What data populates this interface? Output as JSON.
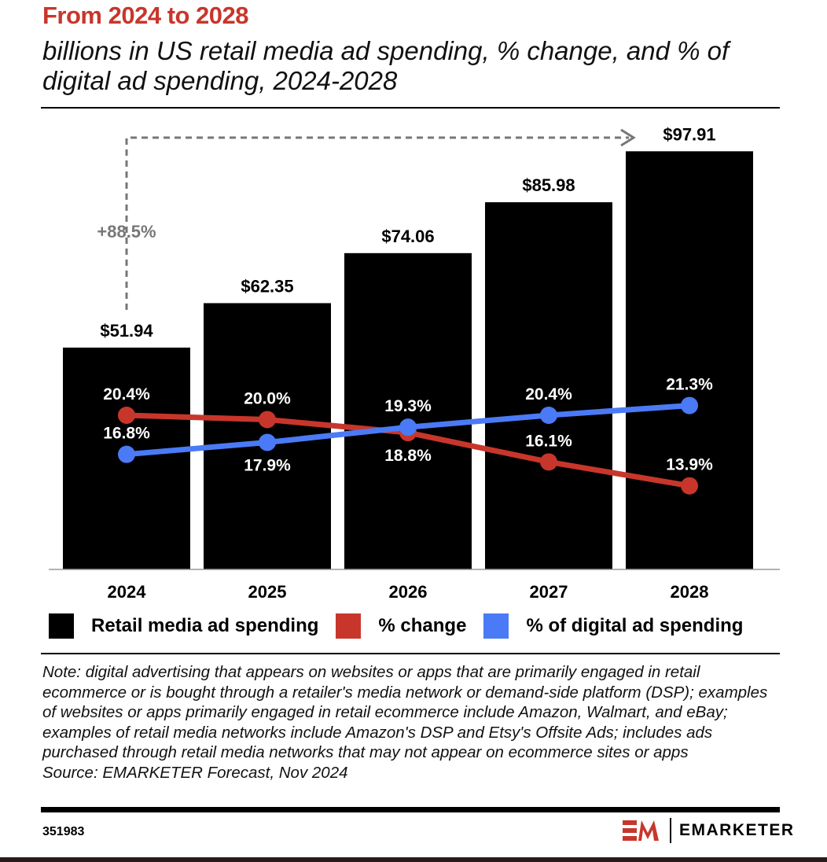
{
  "title": "From 2024 to 2028",
  "subtitle": "billions in US retail media ad spending, % change, and % of digital ad spending, 2024-2028",
  "chart_data": {
    "type": "bar",
    "categories": [
      "2024",
      "2025",
      "2026",
      "2027",
      "2028"
    ],
    "series": [
      {
        "name": "Retail media ad spending",
        "type": "bar",
        "values": [
          51.94,
          62.35,
          74.06,
          85.98,
          97.91
        ],
        "labels": [
          "$51.94",
          "$62.35",
          "$74.06",
          "$85.98",
          "$97.91"
        ],
        "color": "#000000"
      },
      {
        "name": "% change",
        "type": "line",
        "values": [
          20.4,
          20.0,
          18.8,
          16.1,
          13.9
        ],
        "labels": [
          "20.4%",
          "20.0%",
          "18.8%",
          "16.1%",
          "13.9%"
        ],
        "color": "#c8362b"
      },
      {
        "name": "% of digital ad spending",
        "type": "line",
        "values": [
          16.8,
          17.9,
          19.3,
          20.4,
          21.3
        ],
        "labels": [
          "16.8%",
          "17.9%",
          "19.3%",
          "20.4%",
          "21.3%"
        ],
        "color": "#4a7af5"
      }
    ],
    "annotation": "+88.5%",
    "legend": "bottom",
    "grid": false
  },
  "note": "Note: digital advertising that appears on websites or apps that are primarily engaged in retail ecommerce or is bought through a retailer's media network or demand-side platform (DSP); examples of websites or apps primarily engaged in retail ecommerce include Amazon, Walmart, and eBay; examples of retail media networks include Amazon's DSP and Etsy's Offsite Ads; includes ads purchased through retail media networks that may not appear on ecommerce sites or apps",
  "source": "Source: EMARKETER Forecast, Nov 2024",
  "chart_id": "351983",
  "brand": "EMARKETER",
  "logo_mark": "EM"
}
